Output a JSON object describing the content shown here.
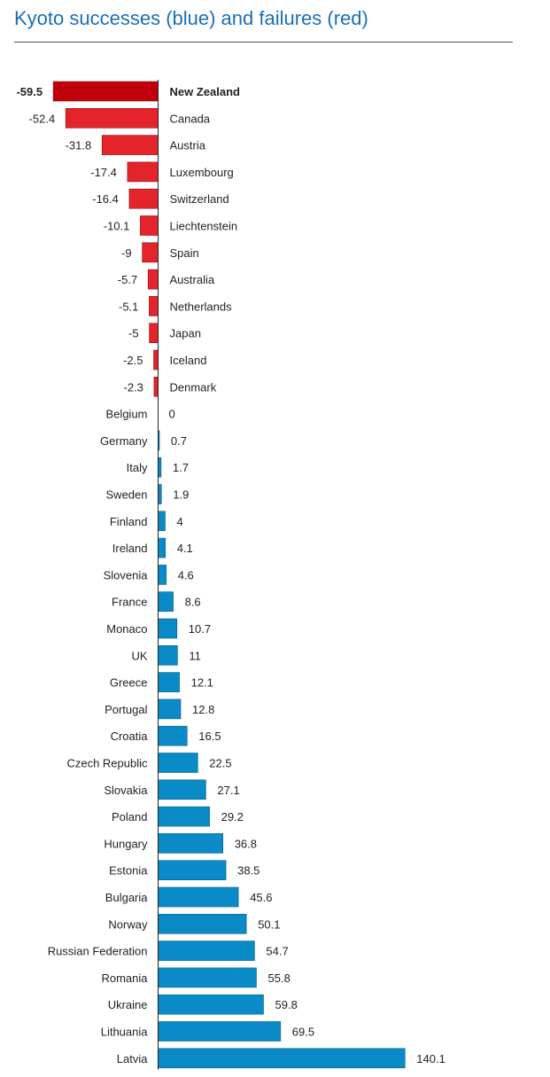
{
  "chart_data": {
    "type": "bar",
    "orientation": "horizontal",
    "title": "Kyoto successes (blue) and failures (red)",
    "xlabel": "",
    "ylabel": "",
    "categories": [
      "New Zealand",
      "Canada",
      "Austria",
      "Luxembourg",
      "Switzerland",
      "Liechtenstein",
      "Spain",
      "Australia",
      "Netherlands",
      "Japan",
      "Iceland",
      "Denmark",
      "Belgium",
      "Germany",
      "Italy",
      "Sweden",
      "Finland",
      "Ireland",
      "Slovenia",
      "France",
      "Monaco",
      "UK",
      "Greece",
      "Portugal",
      "Croatia",
      "Czech Republic",
      "Slovakia",
      "Poland",
      "Hungary",
      "Estonia",
      "Bulgaria",
      "Norway",
      "Russian Federation",
      "Romania",
      "Ukraine",
      "Lithuania",
      "Latvia"
    ],
    "values": [
      -59.5,
      -52.4,
      -31.8,
      -17.4,
      -16.4,
      -10.1,
      -9,
      -5.7,
      -5.1,
      -5,
      -2.5,
      -2.3,
      0,
      0.7,
      1.7,
      1.9,
      4,
      4.1,
      4.6,
      8.6,
      10.7,
      11,
      12.1,
      12.8,
      16.5,
      22.5,
      27.1,
      29.2,
      36.8,
      38.5,
      45.6,
      50.1,
      54.7,
      55.8,
      59.8,
      69.5,
      140.1
    ],
    "value_labels": [
      "-59.5",
      "-52.4",
      "-31.8",
      "-17.4",
      "-16.4",
      "-10.1",
      "-9",
      "-5.7",
      "-5.1",
      "-5",
      "-2.5",
      "-2.3",
      "0",
      "0.7",
      "1.7",
      "1.9",
      "4",
      "4.1",
      "4.6",
      "8.6",
      "10.7",
      "11",
      "12.1",
      "12.8",
      "16.5",
      "22.5",
      "27.1",
      "29.2",
      "36.8",
      "38.5",
      "45.6",
      "50.1",
      "54.7",
      "55.8",
      "59.8",
      "69.5",
      "140.1"
    ],
    "highlight": "New Zealand",
    "colors": {
      "failure": "#e3242b",
      "failure_highlight": "#c0000b",
      "success": "#0a8ac6",
      "axis": "#222222"
    }
  }
}
